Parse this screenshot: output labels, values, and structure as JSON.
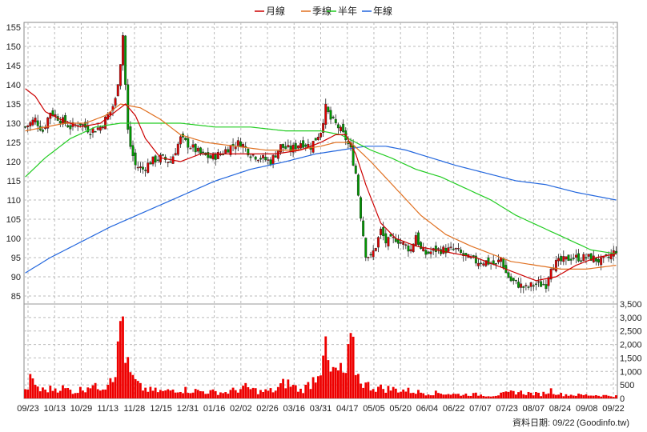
{
  "chart_data": {
    "type": "candlestick",
    "legend": [
      {
        "name": "月線",
        "color": "#cc0000"
      },
      {
        "name": "季線",
        "color": "#e07020"
      },
      {
        "name": "半年",
        "color": "#22cc22"
      },
      {
        "name": "年線",
        "color": "#2266dd"
      }
    ],
    "legend_position": "top-center",
    "grid": true,
    "x_ticks": [
      "09/23",
      "10/13",
      "10/29",
      "11/13",
      "11/28",
      "12/15",
      "12/31",
      "01/16",
      "02/02",
      "02/26",
      "03/16",
      "03/31",
      "04/17",
      "05/05",
      "05/20",
      "06/04",
      "06/22",
      "07/07",
      "07/23",
      "08/07",
      "08/24",
      "09/08",
      "09/22"
    ],
    "price_axis": {
      "min": 85,
      "max": 155,
      "ticks": [
        85,
        90,
        95,
        100,
        105,
        110,
        115,
        120,
        125,
        130,
        135,
        140,
        145,
        150,
        155
      ]
    },
    "volume_axis": {
      "min": 0,
      "max": 3500,
      "ticks": [
        "0",
        "500",
        "1,000",
        "1,500",
        "2,000",
        "2,500",
        "3,000",
        "3,500"
      ]
    },
    "close_anchors": [
      [
        0,
        129
      ],
      [
        4,
        131
      ],
      [
        7,
        128
      ],
      [
        10,
        133
      ],
      [
        14,
        131
      ],
      [
        18,
        129
      ],
      [
        22,
        130
      ],
      [
        26,
        128
      ],
      [
        30,
        129
      ],
      [
        34,
        133
      ],
      [
        36,
        136
      ],
      [
        38,
        146
      ],
      [
        39,
        153
      ],
      [
        40,
        140
      ],
      [
        41,
        128
      ],
      [
        42,
        124
      ],
      [
        44,
        119
      ],
      [
        47,
        118
      ],
      [
        50,
        120
      ],
      [
        54,
        121
      ],
      [
        58,
        120
      ],
      [
        62,
        126
      ],
      [
        66,
        124
      ],
      [
        70,
        122
      ],
      [
        74,
        121
      ],
      [
        78,
        122
      ],
      [
        82,
        124
      ],
      [
        86,
        125
      ],
      [
        90,
        122
      ],
      [
        94,
        121
      ],
      [
        98,
        120
      ],
      [
        102,
        124
      ],
      [
        106,
        123
      ],
      [
        110,
        125
      ],
      [
        114,
        124
      ],
      [
        118,
        128
      ],
      [
        120,
        134
      ],
      [
        122,
        131
      ],
      [
        125,
        129
      ],
      [
        128,
        126
      ],
      [
        130,
        123
      ],
      [
        132,
        117
      ],
      [
        134,
        106
      ],
      [
        136,
        96
      ],
      [
        138,
        95
      ],
      [
        140,
        98
      ],
      [
        142,
        102
      ],
      [
        144,
        99
      ],
      [
        148,
        100
      ],
      [
        150,
        99
      ],
      [
        152,
        98
      ],
      [
        154,
        97
      ],
      [
        156,
        101
      ],
      [
        158,
        97
      ],
      [
        160,
        96
      ],
      [
        164,
        97
      ],
      [
        168,
        97
      ],
      [
        172,
        97
      ],
      [
        176,
        95
      ],
      [
        180,
        94
      ],
      [
        184,
        94
      ],
      [
        188,
        93
      ],
      [
        190,
        95
      ],
      [
        192,
        91
      ],
      [
        194,
        89
      ],
      [
        197,
        88
      ],
      [
        200,
        87
      ],
      [
        203,
        88
      ],
      [
        206,
        88
      ],
      [
        208,
        88
      ],
      [
        210,
        93
      ],
      [
        214,
        94
      ],
      [
        218,
        95
      ],
      [
        222,
        95
      ],
      [
        226,
        95
      ],
      [
        230,
        94
      ],
      [
        233,
        95
      ],
      [
        236,
        97
      ]
    ],
    "ma_monthly": [
      [
        0,
        139
      ],
      [
        4,
        137
      ],
      [
        8,
        133
      ],
      [
        14,
        131
      ],
      [
        22,
        129
      ],
      [
        30,
        130
      ],
      [
        36,
        133
      ],
      [
        40,
        135
      ],
      [
        44,
        132
      ],
      [
        48,
        126
      ],
      [
        54,
        121
      ],
      [
        62,
        120
      ],
      [
        70,
        122
      ],
      [
        80,
        122
      ],
      [
        90,
        122
      ],
      [
        100,
        122
      ],
      [
        110,
        123
      ],
      [
        118,
        125
      ],
      [
        124,
        127
      ],
      [
        128,
        127
      ],
      [
        132,
        122
      ],
      [
        136,
        114
      ],
      [
        142,
        104
      ],
      [
        148,
        100
      ],
      [
        156,
        98
      ],
      [
        164,
        97
      ],
      [
        172,
        96
      ],
      [
        180,
        95
      ],
      [
        188,
        93
      ],
      [
        196,
        91
      ],
      [
        204,
        89
      ],
      [
        212,
        90
      ],
      [
        220,
        93
      ],
      [
        228,
        95
      ],
      [
        236,
        96
      ]
    ],
    "ma_quarterly": [
      [
        0,
        128
      ],
      [
        8,
        129
      ],
      [
        16,
        130
      ],
      [
        24,
        130
      ],
      [
        32,
        132
      ],
      [
        38,
        135
      ],
      [
        46,
        134
      ],
      [
        54,
        131
      ],
      [
        62,
        127
      ],
      [
        72,
        125
      ],
      [
        84,
        124
      ],
      [
        96,
        123
      ],
      [
        108,
        123
      ],
      [
        118,
        124
      ],
      [
        124,
        125
      ],
      [
        130,
        125
      ],
      [
        138,
        120
      ],
      [
        148,
        113
      ],
      [
        158,
        106
      ],
      [
        168,
        101
      ],
      [
        178,
        98
      ],
      [
        186,
        96
      ],
      [
        194,
        94
      ],
      [
        204,
        93
      ],
      [
        214,
        92
      ],
      [
        224,
        92
      ],
      [
        236,
        93
      ]
    ],
    "ma_halfyear": [
      [
        0,
        116
      ],
      [
        8,
        121
      ],
      [
        18,
        126
      ],
      [
        28,
        129
      ],
      [
        38,
        130
      ],
      [
        50,
        130
      ],
      [
        62,
        130
      ],
      [
        76,
        129
      ],
      [
        90,
        129
      ],
      [
        104,
        128
      ],
      [
        118,
        128
      ],
      [
        126,
        127
      ],
      [
        132,
        125
      ],
      [
        138,
        123
      ],
      [
        146,
        121
      ],
      [
        156,
        118
      ],
      [
        166,
        116
      ],
      [
        176,
        113
      ],
      [
        186,
        110
      ],
      [
        196,
        106
      ],
      [
        206,
        103
      ],
      [
        216,
        100
      ],
      [
        226,
        97
      ],
      [
        236,
        96
      ]
    ],
    "ma_yearly": [
      [
        0,
        91
      ],
      [
        10,
        95
      ],
      [
        22,
        99
      ],
      [
        34,
        103
      ],
      [
        48,
        107
      ],
      [
        62,
        111
      ],
      [
        76,
        115
      ],
      [
        90,
        118
      ],
      [
        104,
        120
      ],
      [
        116,
        122
      ],
      [
        126,
        123
      ],
      [
        136,
        124
      ],
      [
        144,
        124
      ],
      [
        152,
        123
      ],
      [
        162,
        121
      ],
      [
        172,
        119
      ],
      [
        184,
        117
      ],
      [
        196,
        115
      ],
      [
        208,
        114
      ],
      [
        220,
        112
      ],
      [
        236,
        110
      ]
    ],
    "volume_anchors": [
      [
        0,
        250
      ],
      [
        2,
        650
      ],
      [
        4,
        550
      ],
      [
        6,
        300
      ],
      [
        10,
        350
      ],
      [
        14,
        400
      ],
      [
        18,
        300
      ],
      [
        20,
        250
      ],
      [
        24,
        400
      ],
      [
        26,
        550
      ],
      [
        28,
        400
      ],
      [
        32,
        500
      ],
      [
        34,
        900
      ],
      [
        36,
        1100
      ],
      [
        37,
        1600
      ],
      [
        38,
        2800
      ],
      [
        39,
        3000
      ],
      [
        40,
        1800
      ],
      [
        41,
        1100
      ],
      [
        43,
        700
      ],
      [
        46,
        400
      ],
      [
        50,
        300
      ],
      [
        56,
        250
      ],
      [
        60,
        350
      ],
      [
        66,
        300
      ],
      [
        72,
        250
      ],
      [
        80,
        220
      ],
      [
        88,
        400
      ],
      [
        94,
        250
      ],
      [
        100,
        300
      ],
      [
        104,
        600
      ],
      [
        106,
        500
      ],
      [
        110,
        300
      ],
      [
        112,
        400
      ],
      [
        115,
        700
      ],
      [
        118,
        1300
      ],
      [
        119,
        2000
      ],
      [
        120,
        1600
      ],
      [
        122,
        900
      ],
      [
        124,
        1000
      ],
      [
        128,
        900
      ],
      [
        130,
        2000
      ],
      [
        131,
        1600
      ],
      [
        133,
        800
      ],
      [
        136,
        500
      ],
      [
        140,
        400
      ],
      [
        146,
        350
      ],
      [
        152,
        300
      ],
      [
        156,
        250
      ],
      [
        160,
        200
      ],
      [
        166,
        200
      ],
      [
        172,
        150
      ],
      [
        180,
        150
      ],
      [
        186,
        100
      ],
      [
        192,
        180
      ],
      [
        196,
        250
      ],
      [
        200,
        200
      ],
      [
        206,
        150
      ],
      [
        210,
        300
      ],
      [
        214,
        150
      ],
      [
        220,
        130
      ],
      [
        228,
        120
      ],
      [
        236,
        90
      ]
    ],
    "candle_count": 237
  },
  "source_label": "資料日期: 09/22",
  "watermark": "(Goodinfo.tw)"
}
